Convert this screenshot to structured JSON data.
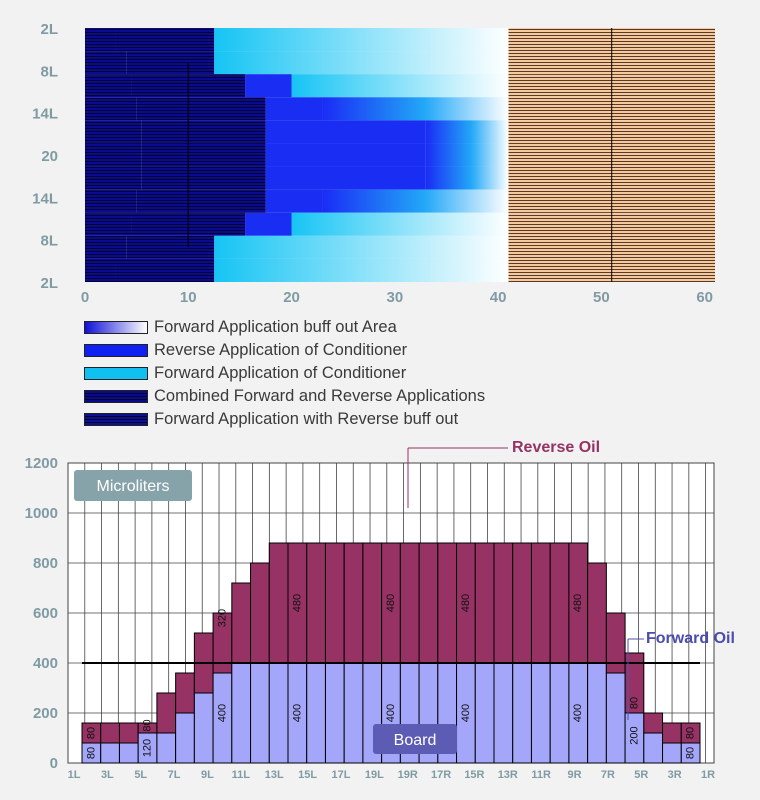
{
  "chart_data": [
    {
      "type": "bar",
      "orientation": "horizontal",
      "y_tick_labels": [
        "2L",
        "8L",
        "14L",
        "20",
        "14L",
        "8L",
        "2L"
      ],
      "x_ticks": [
        0,
        10,
        20,
        30,
        40,
        50,
        60
      ],
      "xlim": [
        0,
        61
      ],
      "grid": false,
      "legend": [
        {
          "label": "Forward Application buff out Area",
          "color": "#1010d8"
        },
        {
          "label": "Reverse Application of Conditioner",
          "color": "#1020f0"
        },
        {
          "label": "Forward Application of Conditioner",
          "color": "#10c0f0"
        },
        {
          "label": "Combined Forward and Reverse Applications",
          "color": "#0a0a8c"
        },
        {
          "label": "Forward Application with Reverse buff out",
          "color": "#0c1290"
        }
      ],
      "legend_position": "below",
      "rows": [
        {
          "combined": 3,
          "dark": 12.5,
          "mid_blue": 12.5,
          "light_end": 41,
          "board_end": 61
        },
        {
          "combined": 4,
          "dark": 12.5,
          "mid_blue": 12.5,
          "light_end": 41,
          "board_end": 61
        },
        {
          "combined": 4.5,
          "dark": 15.5,
          "mid_blue": 20,
          "light_end": 41,
          "board_end": 61
        },
        {
          "combined": 5,
          "dark": 17.5,
          "mid_blue": 23,
          "light_end": 41,
          "board_end": 61
        },
        {
          "combined": 5.5,
          "dark": 17.5,
          "mid_blue": 33,
          "light_end": 41,
          "board_end": 61
        },
        {
          "combined": 5.5,
          "dark": 17.5,
          "mid_blue": 33,
          "light_end": 41,
          "board_end": 61
        },
        {
          "combined": 5.5,
          "dark": 17.5,
          "mid_blue": 33,
          "light_end": 41,
          "board_end": 61
        },
        {
          "combined": 5,
          "dark": 17.5,
          "mid_blue": 23,
          "light_end": 41,
          "board_end": 61
        },
        {
          "combined": 4.5,
          "dark": 15.5,
          "mid_blue": 20,
          "light_end": 41,
          "board_end": 61
        },
        {
          "combined": 4,
          "dark": 12.5,
          "mid_blue": 12.5,
          "light_end": 41,
          "board_end": 61
        },
        {
          "combined": 3,
          "dark": 12.5,
          "mid_blue": 12.5,
          "light_end": 41,
          "board_end": 61
        }
      ],
      "board_color": "#f3c8a0"
    },
    {
      "type": "bar",
      "stacked": true,
      "title_badge": "Microliters",
      "board_badge": "Board",
      "ylim": [
        0,
        1200
      ],
      "y_ticks": [
        0,
        200,
        400,
        600,
        800,
        1000,
        1200
      ],
      "x_tick_labels": [
        "1L",
        "3L",
        "5L",
        "7L",
        "9L",
        "11L",
        "13L",
        "15L",
        "17L",
        "19L",
        "19R",
        "17R",
        "15R",
        "13R",
        "11R",
        "9R",
        "7R",
        "5R",
        "3R",
        "1R"
      ],
      "grid": true,
      "annotations": [
        "Reverse Oil",
        "Forward Oil"
      ],
      "colors": {
        "forward": "#a4a6fa",
        "reverse": "#973264"
      },
      "series": [
        {
          "name": "Forward Oil",
          "values": [
            80,
            80,
            80,
            120,
            120,
            200,
            280,
            360,
            400,
            400,
            400,
            400,
            400,
            400,
            400,
            400,
            400,
            400,
            400,
            400,
            400,
            400,
            400,
            400,
            400,
            400,
            400,
            400,
            400,
            400,
            400,
            400,
            400,
            400,
            400,
            400,
            360,
            280,
            200,
            120,
            80,
            80
          ]
        },
        {
          "name": "Reverse Oil",
          "values": [
            80,
            80,
            80,
            40,
            160,
            160,
            240,
            240,
            320,
            320,
            400,
            480,
            480,
            480,
            480,
            480,
            480,
            480,
            480,
            480,
            480,
            480,
            480,
            480,
            480,
            480,
            480,
            480,
            480,
            480,
            480,
            480,
            480,
            480,
            400,
            320,
            240,
            160,
            80,
            80,
            80,
            80
          ]
        }
      ],
      "value_labels": [
        "80",
        "80",
        "120",
        "80",
        "400",
        "320",
        "400",
        "480",
        "400",
        "480",
        "400",
        "480",
        "400",
        "480",
        "200",
        "80",
        "80",
        "80"
      ]
    }
  ]
}
